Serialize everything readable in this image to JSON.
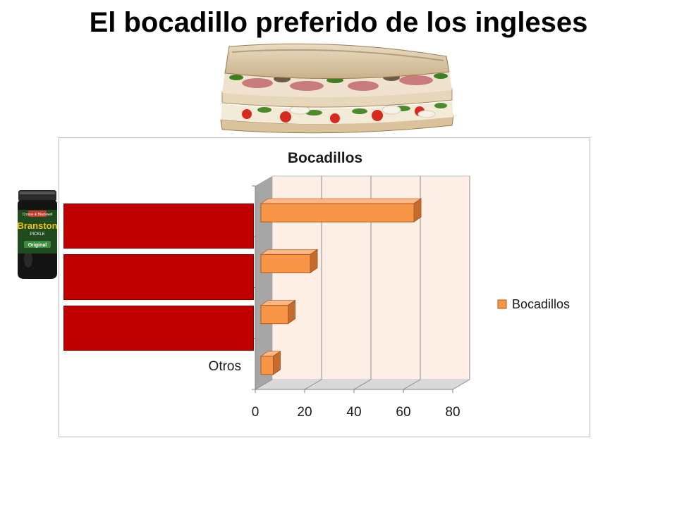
{
  "slide": {
    "title": "El bocadillo preferido de los ingleses"
  },
  "pictures": {
    "sandwich": "sandwich-photo",
    "jar": "pickle-jar-photo",
    "jar_label": {
      "top": "Crosse & Blackwell",
      "brand": "Branston",
      "sub": "PICKLE",
      "variant": "Original"
    }
  },
  "chart_data": {
    "type": "bar",
    "orientation": "horizontal",
    "three_d": true,
    "title": "Bocadillos",
    "categories": [
      "",
      "",
      "",
      "Otros"
    ],
    "series": [
      {
        "name": "Bocadillos",
        "values": [
          62,
          20,
          11,
          5
        ],
        "color": "#f79646"
      }
    ],
    "xlim": [
      0,
      80
    ],
    "xticks": [
      0,
      20,
      40,
      60,
      80
    ],
    "xtick_labels": [
      "0",
      "20",
      "40",
      "60",
      "80"
    ],
    "grid": true,
    "plot_background": "#fdeee6",
    "legend": {
      "position": "right",
      "entries": [
        "Bocadillos"
      ]
    },
    "covered_categories": 3,
    "cover_color": "#c00000"
  }
}
